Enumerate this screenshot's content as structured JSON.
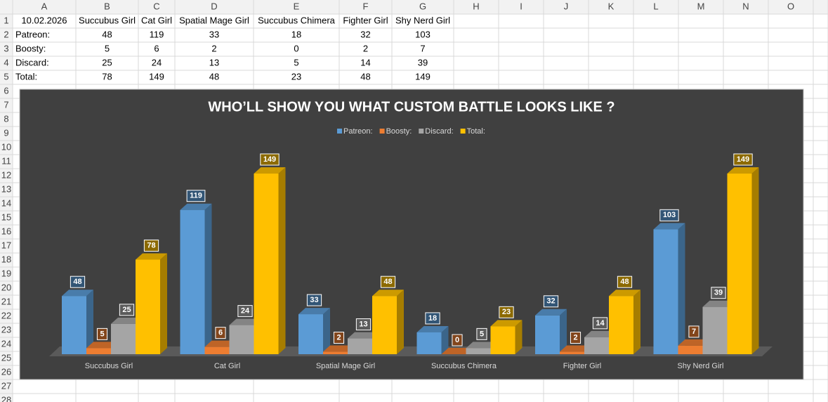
{
  "sheet": {
    "columns": [
      "A",
      "B",
      "C",
      "D",
      "E",
      "F",
      "G",
      "H",
      "I",
      "J",
      "K",
      "L",
      "M",
      "N",
      "O"
    ],
    "rows": [
      1,
      2,
      3,
      4,
      5,
      6,
      7,
      8,
      9,
      10,
      11,
      12,
      13,
      14,
      15,
      16,
      17,
      18,
      19,
      20,
      21,
      22,
      23,
      24,
      25,
      26,
      27,
      28
    ],
    "cells": [
      [
        "10.02.2026",
        "Succubus Girl",
        "Cat Girl",
        "Spatial Mage Girl",
        "Succubus Chimera",
        "Fighter Girl",
        "Shy Nerd Girl"
      ],
      [
        "Patreon:",
        48,
        119,
        33,
        18,
        32,
        103
      ],
      [
        "Boosty:",
        5,
        6,
        2,
        0,
        2,
        7
      ],
      [
        "Discard:",
        25,
        24,
        13,
        5,
        14,
        39
      ],
      [
        "Total:",
        78,
        149,
        48,
        23,
        48,
        149
      ]
    ]
  },
  "chart_data": {
    "type": "bar3d",
    "title": "WHO’LL SHOW YOU WHAT CUSTOM BATTLE LOOKS LIKE ?",
    "categories": [
      "Succubus Girl",
      "Cat Girl",
      "Spatial Mage Girl",
      "Succubus Chimera",
      "Fighter Girl",
      "Shy Nerd Girl"
    ],
    "series": [
      {
        "name": "Patreon:",
        "color": "#5b9bd5",
        "values": [
          48,
          119,
          33,
          18,
          32,
          103
        ]
      },
      {
        "name": "Boosty:",
        "color": "#ed7d31",
        "values": [
          5,
          6,
          2,
          0,
          2,
          7
        ]
      },
      {
        "name": "Discard:",
        "color": "#a5a5a5",
        "values": [
          25,
          24,
          13,
          5,
          14,
          39
        ]
      },
      {
        "name": "Total:",
        "color": "#ffc000",
        "values": [
          78,
          149,
          48,
          23,
          48,
          149
        ]
      }
    ],
    "ylim": [
      0,
      160
    ],
    "legend": "top"
  }
}
